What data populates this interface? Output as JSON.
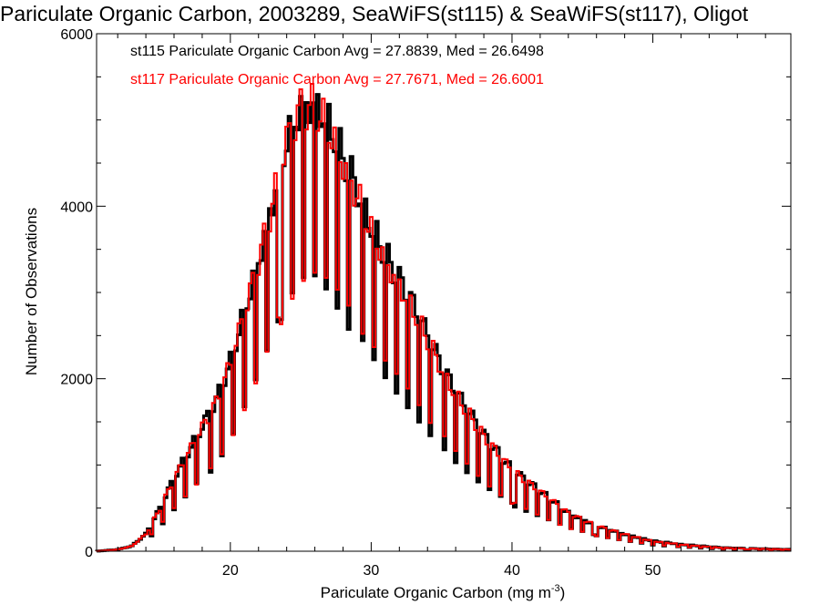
{
  "title": "Pariculate Organic Carbon, 2003289, SeaWiFS(st115) & SeaWiFS(st117), Oligot",
  "chart_data": {
    "type": "line",
    "subtype": "step-histogram",
    "xlabel": "Pariculate Organic Carbon (mg m",
    "xlabel_superscript": "-3",
    "xlabel_suffix": ")",
    "ylabel": "Number of Observations",
    "xlim": [
      10.5,
      59.8
    ],
    "ylim": [
      0,
      6000
    ],
    "x_ticks": [
      "20",
      "30",
      "40",
      "50"
    ],
    "x_tick_values": [
      20,
      30,
      40,
      50
    ],
    "y_ticks": [
      "0",
      "2000",
      "4000",
      "6000"
    ],
    "y_tick_values": [
      0,
      2000,
      4000,
      6000
    ],
    "grid": false,
    "annotations": [
      {
        "text": "st115 Pariculate Organic Carbon Avg = 27.8839, Med = 26.6498",
        "color": "#000000"
      },
      {
        "text": "st117 Pariculate Organic Carbon Avg = 27.7671, Med = 26.6001",
        "color": "#ff0000"
      }
    ],
    "envelope": {
      "x": [
        10.5,
        12,
        13,
        14,
        15,
        16,
        17,
        18,
        19,
        20,
        21,
        22,
        23,
        24,
        25,
        26,
        27,
        28,
        29,
        30,
        31,
        32,
        33,
        34,
        35,
        36,
        37,
        38,
        39,
        40,
        42,
        44,
        46,
        48,
        50,
        52,
        55,
        59.8
      ],
      "y": [
        0,
        20,
        60,
        200,
        500,
        850,
        1150,
        1450,
        1750,
        2200,
        2800,
        3400,
        4100,
        4800,
        5200,
        5250,
        5000,
        4600,
        4200,
        3800,
        3450,
        3150,
        2850,
        2500,
        2150,
        1850,
        1600,
        1350,
        1150,
        950,
        700,
        450,
        300,
        200,
        120,
        80,
        40,
        20
      ]
    },
    "dip_period": 0.83,
    "dip_phase": 0.15,
    "series": [
      {
        "name": "st115",
        "color": "#000000",
        "dip_depth": 0.42,
        "scale": 1.0
      },
      {
        "name": "st117",
        "color": "#ff0000",
        "dip_depth": 0.38,
        "scale": 0.985
      }
    ]
  }
}
